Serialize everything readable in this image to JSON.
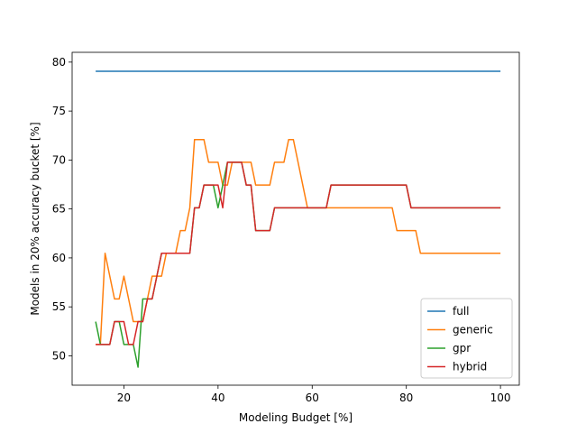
{
  "chart_data": {
    "type": "line",
    "title": "",
    "xlabel": "Modeling Budget [%]",
    "ylabel": "Models in 20% accuracy bucket [%]",
    "xlim": [
      9,
      104
    ],
    "ylim": [
      47.0,
      81.0
    ],
    "xticks": [
      20,
      40,
      60,
      80,
      100
    ],
    "yticks": [
      50,
      55,
      60,
      65,
      70,
      75,
      80
    ],
    "grid": false,
    "legend_position": "lower-right",
    "series": [
      {
        "name": "full",
        "color": "#1f77b4",
        "points": [
          [
            14,
            79.07
          ],
          [
            100,
            79.07
          ]
        ]
      },
      {
        "name": "generic",
        "color": "#ff7f0e",
        "points": [
          [
            14,
            51.16
          ],
          [
            15,
            51.16
          ],
          [
            16,
            60.47
          ],
          [
            17,
            58.14
          ],
          [
            18,
            55.81
          ],
          [
            19,
            55.81
          ],
          [
            20,
            58.14
          ],
          [
            21,
            55.81
          ],
          [
            22,
            53.49
          ],
          [
            23,
            53.49
          ],
          [
            24,
            53.49
          ],
          [
            25,
            55.81
          ],
          [
            26,
            58.14
          ],
          [
            27,
            58.14
          ],
          [
            28,
            58.14
          ],
          [
            29,
            60.47
          ],
          [
            30,
            60.47
          ],
          [
            31,
            60.47
          ],
          [
            32,
            62.79
          ],
          [
            33,
            62.79
          ],
          [
            34,
            65.12
          ],
          [
            35,
            72.09
          ],
          [
            36,
            72.09
          ],
          [
            37,
            72.09
          ],
          [
            38,
            69.77
          ],
          [
            39,
            69.77
          ],
          [
            40,
            69.77
          ],
          [
            41,
            67.44
          ],
          [
            42,
            67.44
          ],
          [
            43,
            69.77
          ],
          [
            44,
            69.77
          ],
          [
            45,
            69.77
          ],
          [
            46,
            69.77
          ],
          [
            47,
            69.77
          ],
          [
            48,
            67.44
          ],
          [
            49,
            67.44
          ],
          [
            50,
            67.44
          ],
          [
            51,
            67.44
          ],
          [
            52,
            69.77
          ],
          [
            53,
            69.77
          ],
          [
            54,
            69.77
          ],
          [
            55,
            72.09
          ],
          [
            56,
            72.09
          ],
          [
            57,
            69.77
          ],
          [
            58,
            67.44
          ],
          [
            59,
            65.12
          ],
          [
            60,
            65.12
          ],
          [
            64,
            65.12
          ],
          [
            70,
            65.12
          ],
          [
            76,
            65.12
          ],
          [
            77,
            65.12
          ],
          [
            78,
            62.79
          ],
          [
            80,
            62.79
          ],
          [
            82,
            62.79
          ],
          [
            83,
            60.47
          ],
          [
            90,
            60.47
          ],
          [
            100,
            60.47
          ]
        ]
      },
      {
        "name": "gpr",
        "color": "#2ca02c",
        "points": [
          [
            14,
            53.49
          ],
          [
            15,
            51.16
          ],
          [
            16,
            51.16
          ],
          [
            17,
            51.16
          ],
          [
            18,
            53.49
          ],
          [
            19,
            53.49
          ],
          [
            20,
            51.16
          ],
          [
            21,
            51.16
          ],
          [
            22,
            51.16
          ],
          [
            23,
            48.84
          ],
          [
            24,
            55.81
          ],
          [
            25,
            55.81
          ],
          [
            26,
            55.81
          ],
          [
            27,
            58.14
          ],
          [
            28,
            60.47
          ],
          [
            30,
            60.47
          ],
          [
            32,
            60.47
          ],
          [
            34,
            60.47
          ],
          [
            35,
            65.12
          ],
          [
            36,
            65.12
          ],
          [
            37,
            67.44
          ],
          [
            38,
            67.44
          ],
          [
            39,
            67.44
          ],
          [
            40,
            65.12
          ],
          [
            41,
            67.44
          ],
          [
            42,
            69.77
          ],
          [
            43,
            69.77
          ],
          [
            44,
            69.77
          ],
          [
            45,
            69.77
          ],
          [
            46,
            67.44
          ],
          [
            47,
            67.44
          ],
          [
            48,
            62.79
          ],
          [
            49,
            62.79
          ],
          [
            50,
            62.79
          ],
          [
            51,
            62.79
          ],
          [
            52,
            65.12
          ],
          [
            54,
            65.12
          ],
          [
            56,
            65.12
          ],
          [
            58,
            65.12
          ],
          [
            60,
            65.12
          ],
          [
            62,
            65.12
          ],
          [
            63,
            65.12
          ],
          [
            64,
            67.44
          ],
          [
            70,
            67.44
          ],
          [
            75,
            67.44
          ],
          [
            80,
            67.44
          ],
          [
            81,
            65.12
          ],
          [
            90,
            65.12
          ],
          [
            100,
            65.12
          ]
        ]
      },
      {
        "name": "hybrid",
        "color": "#d62728",
        "points": [
          [
            14,
            51.16
          ],
          [
            15,
            51.16
          ],
          [
            16,
            51.16
          ],
          [
            17,
            51.16
          ],
          [
            18,
            53.49
          ],
          [
            19,
            53.49
          ],
          [
            20,
            53.49
          ],
          [
            21,
            51.16
          ],
          [
            22,
            51.16
          ],
          [
            23,
            53.49
          ],
          [
            24,
            53.49
          ],
          [
            25,
            55.81
          ],
          [
            26,
            55.81
          ],
          [
            27,
            58.14
          ],
          [
            28,
            60.47
          ],
          [
            30,
            60.47
          ],
          [
            32,
            60.47
          ],
          [
            34,
            60.47
          ],
          [
            35,
            65.12
          ],
          [
            36,
            65.12
          ],
          [
            37,
            67.44
          ],
          [
            38,
            67.44
          ],
          [
            39,
            67.44
          ],
          [
            40,
            67.44
          ],
          [
            41,
            65.12
          ],
          [
            42,
            69.77
          ],
          [
            43,
            69.77
          ],
          [
            44,
            69.77
          ],
          [
            45,
            69.77
          ],
          [
            46,
            67.44
          ],
          [
            47,
            67.44
          ],
          [
            48,
            62.79
          ],
          [
            49,
            62.79
          ],
          [
            50,
            62.79
          ],
          [
            51,
            62.79
          ],
          [
            52,
            65.12
          ],
          [
            54,
            65.12
          ],
          [
            56,
            65.12
          ],
          [
            58,
            65.12
          ],
          [
            60,
            65.12
          ],
          [
            62,
            65.12
          ],
          [
            63,
            65.12
          ],
          [
            64,
            67.44
          ],
          [
            70,
            67.44
          ],
          [
            75,
            67.44
          ],
          [
            80,
            67.44
          ],
          [
            81,
            65.12
          ],
          [
            90,
            65.12
          ],
          [
            100,
            65.12
          ]
        ]
      }
    ]
  }
}
